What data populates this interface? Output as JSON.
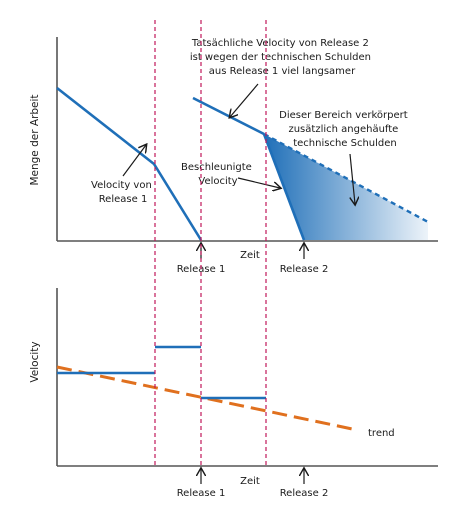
{
  "top_chart": {
    "y_axis_label": "Menge der Arbeit",
    "x_axis_label": "Zeit",
    "note_release2": [
      "Tatsächliche Velocity von Release 2",
      "ist wegen der technischen Schulden",
      "aus Release 1 viel langsamer"
    ],
    "note_debt": [
      "Dieser Bereich verkörpert",
      "zusätzlich angehäufte",
      "technische Schulden"
    ],
    "note_velocity1": [
      "Velocity von",
      "Release 1"
    ],
    "note_accel": [
      "Beschleunigte",
      "Velocity"
    ],
    "release_labels": [
      "Release 1",
      "Release 2"
    ]
  },
  "bottom_chart": {
    "y_axis_label": "Velocity",
    "x_axis_label": "Zeit",
    "trend_label": "trend",
    "release_labels": [
      "Release 1",
      "Release 2"
    ]
  },
  "colors": {
    "line": "#1f6fb8",
    "trend": "#e0701e",
    "axis": "#555555",
    "release_divider": "#c0185a",
    "debt_fill": "#1f6fb8"
  }
}
